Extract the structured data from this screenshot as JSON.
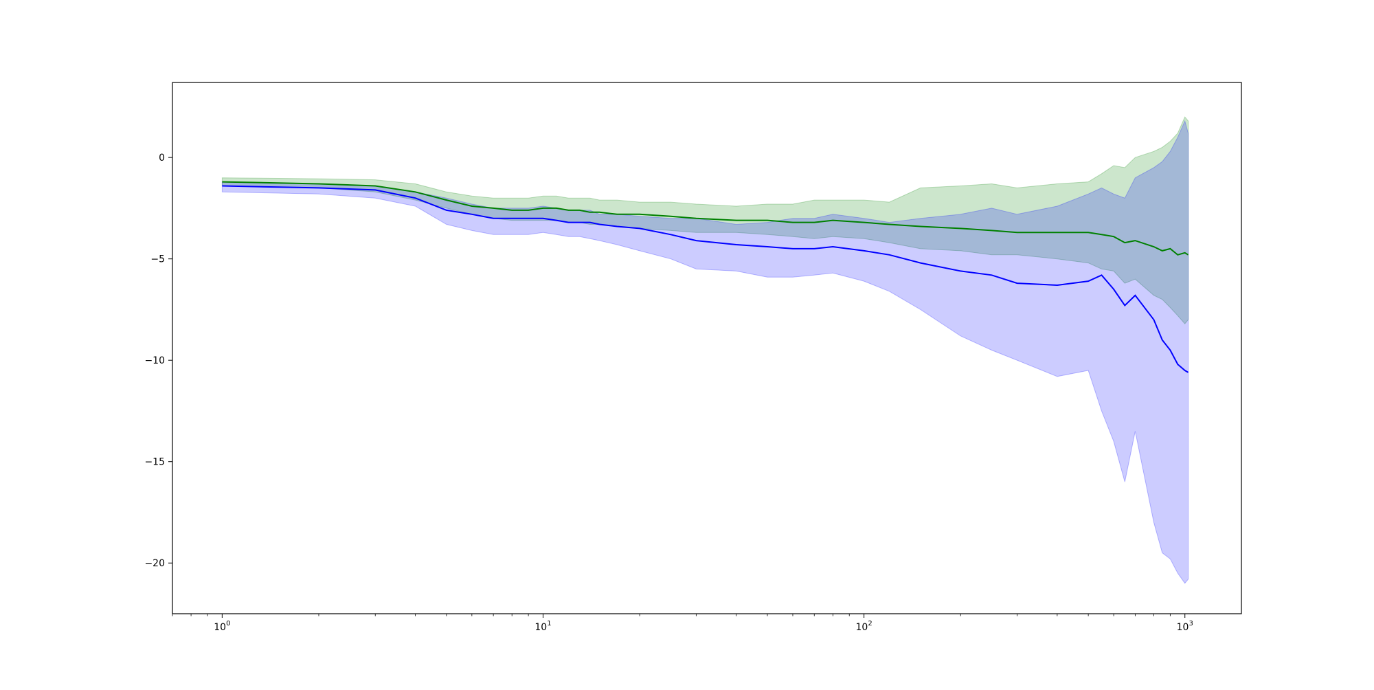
{
  "chart_data": {
    "type": "line",
    "title": "",
    "xlabel": "",
    "ylabel": "",
    "xscale": "log",
    "xlim": [
      0.7,
      1500
    ],
    "ylim": [
      -22.5,
      3.7
    ],
    "grid": false,
    "legend": "none",
    "x_ticks": [
      {
        "value": 1,
        "base": "10",
        "exp": "0"
      },
      {
        "value": 10,
        "base": "10",
        "exp": "1"
      },
      {
        "value": 100,
        "base": "10",
        "exp": "2"
      },
      {
        "value": 1000,
        "base": "10",
        "exp": "3"
      }
    ],
    "y_ticks": [
      {
        "value": 0,
        "label": "0"
      },
      {
        "value": -5,
        "label": "−5"
      },
      {
        "value": -10,
        "label": "−10"
      },
      {
        "value": -15,
        "label": "−15"
      },
      {
        "value": -20,
        "label": "−20"
      }
    ],
    "x": [
      1,
      2,
      3,
      4,
      5,
      6,
      7,
      8,
      9,
      10,
      11,
      12,
      13,
      14,
      15,
      17,
      20,
      25,
      30,
      40,
      50,
      60,
      70,
      80,
      100,
      120,
      150,
      200,
      250,
      300,
      400,
      500,
      550,
      600,
      650,
      700,
      800,
      850,
      900,
      950,
      1000,
      1024
    ],
    "series": [
      {
        "color": "#008000",
        "band_color": "#008000",
        "values": [
          -1.2,
          -1.3,
          -1.4,
          -1.7,
          -2.1,
          -2.4,
          -2.5,
          -2.6,
          -2.6,
          -2.5,
          -2.5,
          -2.6,
          -2.6,
          -2.7,
          -2.7,
          -2.8,
          -2.8,
          -2.9,
          -3.0,
          -3.1,
          -3.1,
          -3.2,
          -3.2,
          -3.1,
          -3.2,
          -3.3,
          -3.4,
          -3.5,
          -3.6,
          -3.7,
          -3.7,
          -3.7,
          -3.8,
          -3.9,
          -4.2,
          -4.1,
          -4.4,
          -4.6,
          -4.5,
          -4.8,
          -4.7,
          -4.8
        ],
        "upper": [
          -1.0,
          -1.05,
          -1.1,
          -1.3,
          -1.7,
          -1.9,
          -2.0,
          -2.0,
          -2.0,
          -1.9,
          -1.9,
          -2.0,
          -2.0,
          -2.0,
          -2.1,
          -2.1,
          -2.2,
          -2.2,
          -2.3,
          -2.4,
          -2.3,
          -2.3,
          -2.1,
          -2.1,
          -2.1,
          -2.2,
          -1.5,
          -1.4,
          -1.3,
          -1.5,
          -1.3,
          -1.2,
          -0.8,
          -0.4,
          -0.5,
          0.0,
          0.3,
          0.5,
          0.8,
          1.2,
          2.0,
          1.8
        ],
        "lower": [
          -1.4,
          -1.5,
          -1.7,
          -2.1,
          -2.5,
          -2.8,
          -3.0,
          -3.1,
          -3.1,
          -3.1,
          -3.1,
          -3.2,
          -3.2,
          -3.3,
          -3.3,
          -3.4,
          -3.5,
          -3.6,
          -3.7,
          -3.7,
          -3.8,
          -3.9,
          -4.0,
          -3.9,
          -4.0,
          -4.2,
          -4.5,
          -4.6,
          -4.8,
          -4.8,
          -5.0,
          -5.2,
          -5.5,
          -5.6,
          -6.2,
          -6.0,
          -6.8,
          -7.0,
          -7.4,
          -7.8,
          -8.2,
          -8.0
        ]
      },
      {
        "color": "#0000ff",
        "band_color": "#0000ff",
        "values": [
          -1.4,
          -1.5,
          -1.6,
          -2.0,
          -2.6,
          -2.8,
          -3.0,
          -3.0,
          -3.0,
          -3.0,
          -3.1,
          -3.2,
          -3.2,
          -3.2,
          -3.3,
          -3.4,
          -3.5,
          -3.8,
          -4.1,
          -4.3,
          -4.4,
          -4.5,
          -4.5,
          -4.4,
          -4.6,
          -4.8,
          -5.2,
          -5.6,
          -5.8,
          -6.2,
          -6.3,
          -6.1,
          -5.8,
          -6.5,
          -7.3,
          -6.8,
          -8.0,
          -9.0,
          -9.5,
          -10.2,
          -10.5,
          -10.6
        ],
        "upper": [
          -1.2,
          -1.3,
          -1.4,
          -1.7,
          -2.0,
          -2.3,
          -2.5,
          -2.5,
          -2.5,
          -2.4,
          -2.5,
          -2.6,
          -2.6,
          -2.6,
          -2.8,
          -2.8,
          -2.9,
          -3.0,
          -3.0,
          -3.3,
          -3.2,
          -3.0,
          -3.0,
          -2.8,
          -3.0,
          -3.2,
          -3.0,
          -2.8,
          -2.5,
          -2.8,
          -2.4,
          -1.8,
          -1.5,
          -1.8,
          -2.0,
          -1.0,
          -0.5,
          -0.2,
          0.3,
          1.0,
          1.8,
          1.2
        ],
        "lower": [
          -1.7,
          -1.8,
          -2.0,
          -2.4,
          -3.3,
          -3.6,
          -3.8,
          -3.8,
          -3.8,
          -3.7,
          -3.8,
          -3.9,
          -3.9,
          -4.0,
          -4.1,
          -4.3,
          -4.6,
          -5.0,
          -5.5,
          -5.6,
          -5.9,
          -5.9,
          -5.8,
          -5.7,
          -6.1,
          -6.6,
          -7.5,
          -8.8,
          -9.5,
          -10.0,
          -10.8,
          -10.5,
          -12.5,
          -14.0,
          -16.0,
          -13.5,
          -18.0,
          -19.5,
          -19.8,
          -20.5,
          -21.0,
          -20.8
        ]
      }
    ]
  }
}
